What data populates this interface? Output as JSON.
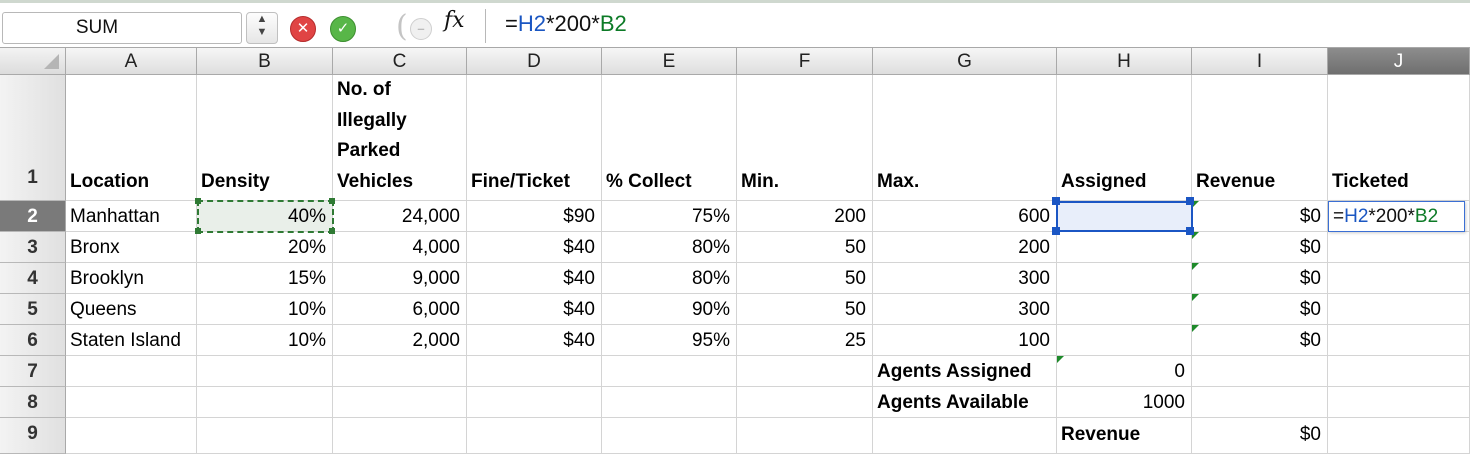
{
  "formula_bar": {
    "name_box": "SUM",
    "fx_label": "fx",
    "formula_parts": [
      "=",
      "H2",
      "*200*",
      "B2"
    ]
  },
  "columns": [
    "A",
    "B",
    "C",
    "D",
    "E",
    "F",
    "G",
    "H",
    "I",
    "J"
  ],
  "rows": [
    "1",
    "2",
    "3",
    "4",
    "5",
    "6",
    "7",
    "8",
    "9"
  ],
  "headers": {
    "A": "Location",
    "B": "Density",
    "C": "No. of Illegally Parked Vehicles",
    "D": "Fine/Ticket",
    "E": "% Collect",
    "F": "Min.",
    "G": "Max.",
    "H": "Assigned",
    "I": "Revenue",
    "J": "Ticketed"
  },
  "data_rows": [
    {
      "location": "Manhattan",
      "density": "40%",
      "vehicles": "24,000",
      "fine": "$90",
      "collect": "75%",
      "min": "200",
      "max": "600",
      "assigned": "",
      "revenue": "$0"
    },
    {
      "location": "Bronx",
      "density": "20%",
      "vehicles": "4,000",
      "fine": "$40",
      "collect": "80%",
      "min": "50",
      "max": "200",
      "assigned": "",
      "revenue": "$0"
    },
    {
      "location": "Brooklyn",
      "density": "15%",
      "vehicles": "9,000",
      "fine": "$40",
      "collect": "80%",
      "min": "50",
      "max": "300",
      "assigned": "",
      "revenue": "$0"
    },
    {
      "location": "Queens",
      "density": "10%",
      "vehicles": "6,000",
      "fine": "$40",
      "collect": "90%",
      "min": "50",
      "max": "300",
      "assigned": "",
      "revenue": "$0"
    },
    {
      "location": "Staten Island",
      "density": "10%",
      "vehicles": "2,000",
      "fine": "$40",
      "collect": "95%",
      "min": "25",
      "max": "100",
      "assigned": "",
      "revenue": "$0"
    }
  ],
  "summary": {
    "agents_assigned_label": "Agents Assigned",
    "agents_assigned_value": "0",
    "agents_available_label": "Agents Available",
    "agents_available_value": "1000",
    "revenue_label": "Revenue",
    "revenue_value": "$0"
  },
  "active_cell": "J2",
  "edit_parts": [
    "=",
    "H2",
    "*200*",
    "B2"
  ]
}
